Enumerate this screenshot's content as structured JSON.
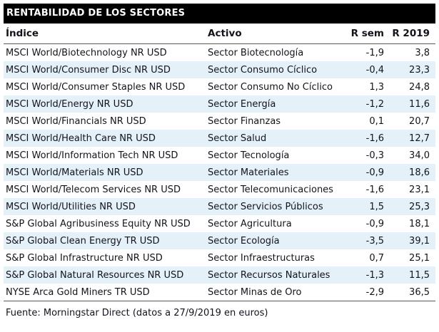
{
  "title": "RENTABILIDAD DE LOS SECTORES",
  "table": {
    "columns": [
      "Índice",
      "Activo",
      "R sem",
      "R 2019"
    ],
    "rows": [
      {
        "indice": "MSCI World/Biotechnology NR USD",
        "activo": "Sector Biotecnología",
        "r_sem": "-1,9",
        "r_2019": "3,8"
      },
      {
        "indice": "MSCI World/Consumer Disc NR USD",
        "activo": "Sector Consumo Cíclico",
        "r_sem": "-0,4",
        "r_2019": "23,3"
      },
      {
        "indice": "MSCI World/Consumer Staples NR USD",
        "activo": "Sector Consumo No Cíclico",
        "r_sem": "1,3",
        "r_2019": "24,8"
      },
      {
        "indice": "MSCI World/Energy NR USD",
        "activo": "Sector Energía",
        "r_sem": "-1,2",
        "r_2019": "11,6"
      },
      {
        "indice": "MSCI World/Financials NR USD",
        "activo": "Sector Finanzas",
        "r_sem": "0,1",
        "r_2019": "20,7"
      },
      {
        "indice": "MSCI World/Health Care NR USD",
        "activo": "Sector Salud",
        "r_sem": "-1,6",
        "r_2019": "12,7"
      },
      {
        "indice": "MSCI World/Information Tech NR USD",
        "activo": "Sector Tecnología",
        "r_sem": "-0,3",
        "r_2019": "34,0"
      },
      {
        "indice": "MSCI World/Materials NR USD",
        "activo": "Sector Materiales",
        "r_sem": "-0,9",
        "r_2019": "18,6"
      },
      {
        "indice": "MSCI World/Telecom Services NR USD",
        "activo": "Sector Telecomunicaciones",
        "r_sem": "-1,6",
        "r_2019": "23,1"
      },
      {
        "indice": "MSCI World/Utilities NR USD",
        "activo": "Sector Servicios Públicos",
        "r_sem": "1,5",
        "r_2019": "25,3"
      },
      {
        "indice": "S&P Global Agribusiness Equity NR USD",
        "activo": "Sector Agricultura",
        "r_sem": "-0,9",
        "r_2019": "18,1"
      },
      {
        "indice": "S&P Global Clean Energy TR USD",
        "activo": "Sector Ecología",
        "r_sem": "-3,5",
        "r_2019": "39,1"
      },
      {
        "indice": "S&P Global Infrastructure NR USD",
        "activo": "Sector Infraestructuras",
        "r_sem": "0,7",
        "r_2019": "25,1"
      },
      {
        "indice": "S&P Global Natural Resources NR USD",
        "activo": "Sector Recursos Naturales",
        "r_sem": "-1,3",
        "r_2019": "11,5"
      },
      {
        "indice": "NYSE Arca Gold Miners TR USD",
        "activo": "Sector Minas de Oro",
        "r_sem": "-2,9",
        "r_2019": "36,5"
      }
    ]
  },
  "footer": "Fuente: Morningstar Direct (datos a 27/9/2019 en euros)",
  "colors": {
    "title_bar_bg": "#000000",
    "title_bar_text": "#ffffff",
    "row_alt_bg": "#e4f1f8",
    "body_text": "#13131c",
    "rule": "#595959"
  }
}
